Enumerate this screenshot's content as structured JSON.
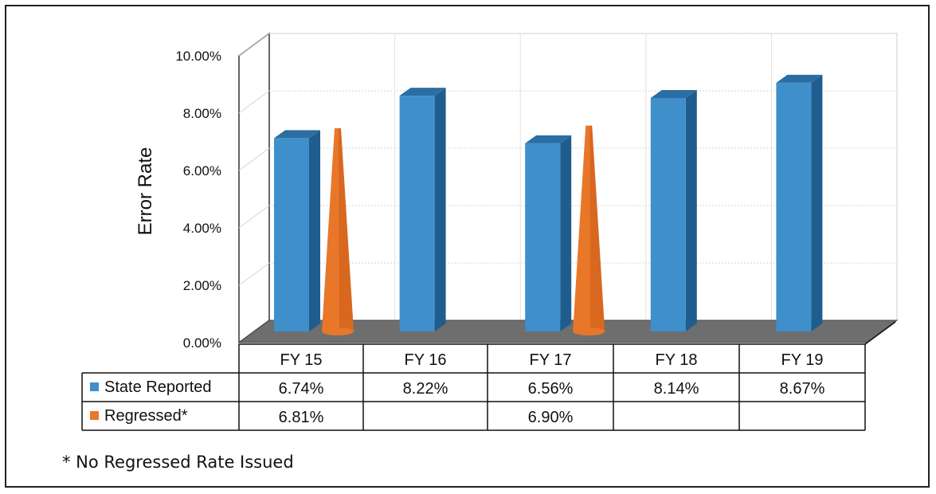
{
  "chart_data": {
    "type": "bar",
    "ylabel": "Error Rate",
    "ylim": [
      0,
      10
    ],
    "yticks": [
      "0.00%",
      "2.00%",
      "4.00%",
      "6.00%",
      "8.00%",
      "10.00%"
    ],
    "grid": true,
    "categories": [
      "FY 15",
      "FY 16",
      "FY 17",
      "FY 18",
      "FY 19"
    ],
    "series": [
      {
        "name": "State Reported",
        "shape": "3d-column",
        "color": "#3f8fcb",
        "values": [
          6.74,
          8.22,
          6.56,
          8.14,
          8.67
        ],
        "labels": [
          "6.74%",
          "8.22%",
          "6.56%",
          "8.14%",
          "8.67%"
        ]
      },
      {
        "name": "Regressed*",
        "shape": "cone",
        "color": "#e8772a",
        "values": [
          6.81,
          null,
          6.9,
          null,
          null
        ],
        "labels": [
          "6.81%",
          "",
          "6.90%",
          "",
          ""
        ]
      }
    ],
    "data_table": true,
    "footnote": "* No Regressed Rate Issued"
  }
}
